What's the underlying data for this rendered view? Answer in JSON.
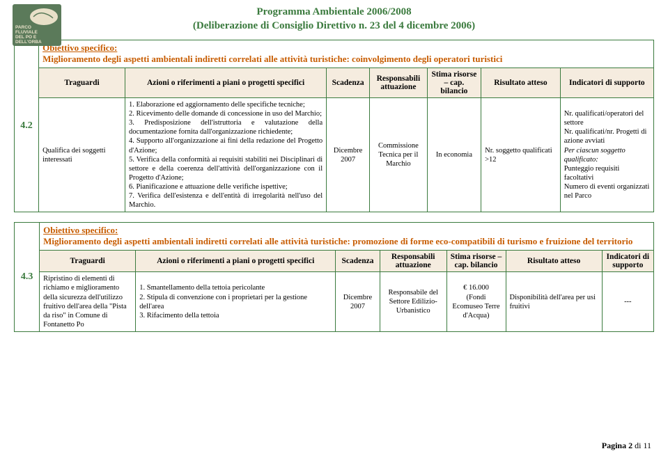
{
  "header": {
    "line1": "Programma Ambientale 2006/2008",
    "line2": "(Deliberazione di Consiglio Direttivo n. 23 del 4 dicembre 2006)"
  },
  "logo": {
    "bg": "#5b7a5a",
    "accent": "#e8e0c8",
    "text1": "PARCO",
    "text2": "FLUVIALE",
    "text3": "DEL PO E",
    "text4": "DELL'ORBA"
  },
  "colors": {
    "green": "#3a7a3d",
    "orange": "#c75c00",
    "beige": "#f5ecdf"
  },
  "section42": {
    "number": "4.2",
    "label": "Obiettivo specifico:",
    "text": "Miglioramento degli aspetti ambientali indiretti correlati alle attività turistiche: coinvolgimento degli operatori turistici",
    "headers": {
      "traguardi": "Traguardi",
      "azioni": "Azioni o riferimenti a piani o progetti specifici",
      "scadenza": "Scadenza",
      "responsabili": "Responsabili attuazione",
      "stima": "Stima risorse – cap. bilancio",
      "risultato": "Risultato atteso",
      "indicatori": "Indicatori di supporto"
    },
    "row": {
      "traguardi": "Qualifica dei soggetti interessati",
      "azioni": "1. Elaborazione ed aggiornamento delle specifiche tecniche;\n2. Ricevimento delle domande di concessione in uso del Marchio;\n3. Predisposizione dell'istruttoria e valutazione della documentazione fornita dall'organizzazione richiedente;\n4. Supporto all'organizzazione ai fini della redazione del Progetto d'Azione;\n5. Verifica della conformità ai requisiti stabiliti nei Disciplinari di settore e della coerenza dell'attività dell'organizzazione con il Progetto d'Azione;\n6. Pianificazione e attuazione delle verifiche ispettive;\n7. Verifica dell'esistenza e dell'entità di irregolarità nell'uso del Marchio.",
      "scadenza": "Dicembre 2007",
      "responsabili": "Commissione Tecnica per il Marchio",
      "stima": "In economia",
      "risultato": "Nr. soggetto qualificati >12",
      "indicatori": "Nr. qualificati/operatori del settore\nNr. qualificati/nr. Progetti di azione avviati\nPer ciascun soggetto qualificato:\nPunteggio requisiti facoltativi\nNumero di eventi organizzati nel Parco"
    }
  },
  "section43": {
    "number": "4.3",
    "label": "Obiettivo specifico:",
    "text": "Miglioramento degli aspetti ambientali indiretti correlati alle attività turistiche: promozione di forme eco-compatibili di turismo e fruizione del territorio",
    "headers": {
      "traguardi": "Traguardi",
      "azioni": "Azioni o riferimenti a piani o progetti specifici",
      "scadenza": "Scadenza",
      "responsabili": "Responsabili attuazione",
      "stima": "Stima risorse – cap. bilancio",
      "risultato": "Risultato atteso",
      "indicatori": "Indicatori di supporto"
    },
    "row": {
      "traguardi": "Ripristino di elementi di richiamo e miglioramento della sicurezza dell'utilizzo fruitivo dell'area della \"Pista da riso\" in Comune di Fontanetto Po",
      "azioni": "1. Smantellamento della tettoia pericolante\n2. Stipula di convenzione con i proprietari per la gestione dell'area\n3. Rifacimento della tettoia",
      "scadenza": "Dicembre 2007",
      "responsabili": "Responsabile del Settore Edilizio-Urbanistico",
      "stima": "€ 16.000\n(Fondi Ecomuseo Terre d'Acqua)",
      "risultato": "Disponibilità dell'area per usi fruitivi",
      "indicatori": "---"
    }
  },
  "footer": {
    "pagina": "Pagina",
    "num": "2",
    "di": "di",
    "total": "11"
  }
}
